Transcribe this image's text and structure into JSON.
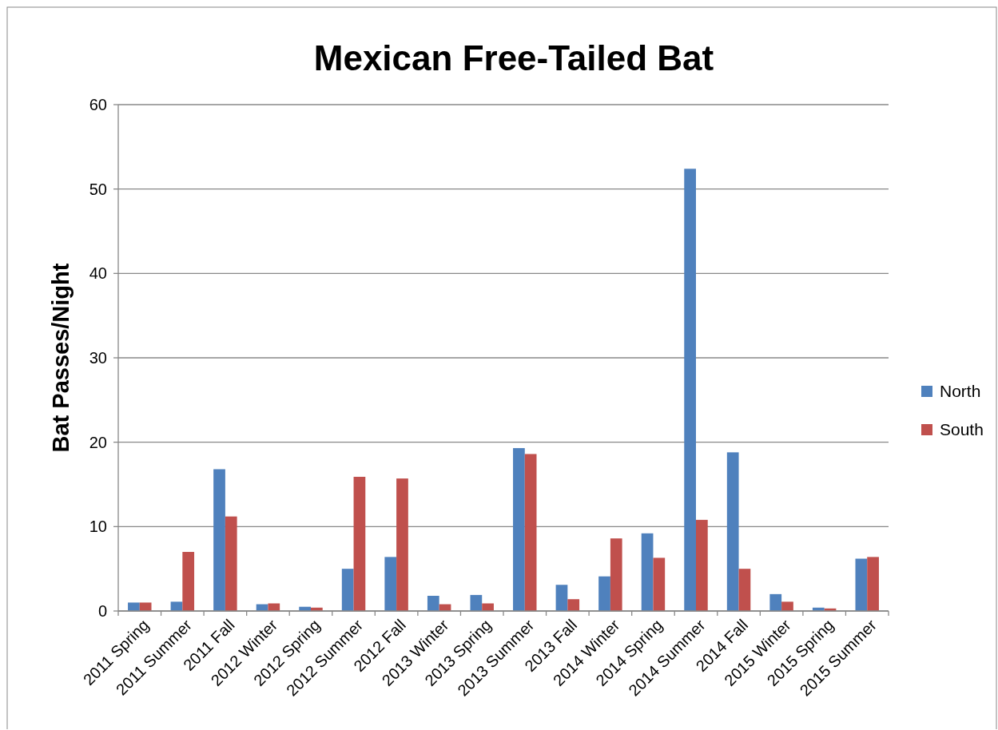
{
  "chart_data": {
    "type": "bar",
    "title": "Mexican Free-Tailed Bat",
    "ylabel": "Bat Passes/Night",
    "categories": [
      "2011 Spring",
      "2011 Summer",
      "2011 Fall",
      "2012 Winter",
      "2012 Spring",
      "2012 Summer",
      "2012 Fall",
      "2013 Winter",
      "2013 Spring",
      "2013 Summer",
      "2013 Fall",
      "2014 Winter",
      "2014 Spring",
      "2014 Summer",
      "2014 Fall",
      "2015 Winter",
      "2015 Spring",
      "2015 Summer"
    ],
    "series": [
      {
        "name": "North",
        "color": "#4f81bd",
        "values": [
          1.0,
          1.1,
          16.8,
          0.8,
          0.5,
          5.0,
          6.4,
          1.8,
          1.9,
          19.3,
          3.1,
          4.1,
          9.2,
          52.4,
          18.8,
          2.0,
          0.4,
          6.2
        ]
      },
      {
        "name": "South",
        "color": "#c0504d",
        "values": [
          1.0,
          7.0,
          11.2,
          0.9,
          0.4,
          15.9,
          15.7,
          0.8,
          0.9,
          18.6,
          1.4,
          8.6,
          6.3,
          10.8,
          5.0,
          1.1,
          0.3,
          6.4
        ]
      }
    ],
    "ylim": [
      0,
      60
    ],
    "yticks": [
      0,
      10,
      20,
      30,
      40,
      50,
      60
    ],
    "grid": "y",
    "legend": "right"
  }
}
